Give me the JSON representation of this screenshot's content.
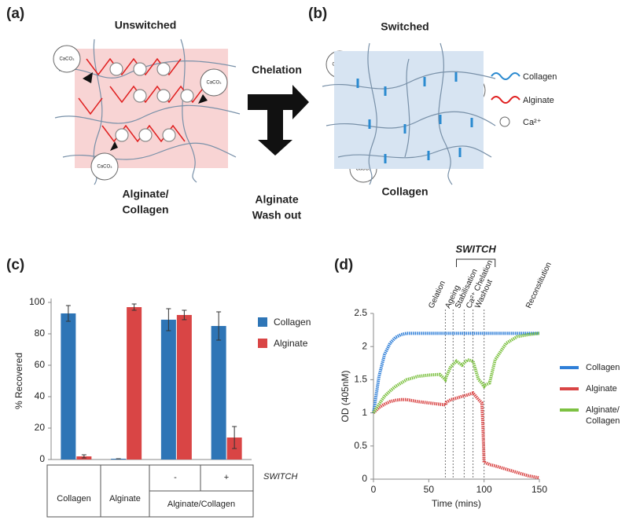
{
  "panel_labels": [
    "(a)",
    "(b)",
    "(c)",
    "(d)"
  ],
  "diagram": {
    "unswitched": "Unswitched",
    "switched": "Switched",
    "unswitched_label": [
      "Alginate/",
      "Collagen"
    ],
    "switched_label": "Collagen",
    "chelation": "Chelation",
    "wash_out": [
      "Alginate",
      "Wash out"
    ],
    "caco3": "CaCO₃",
    "legend": [
      "Collagen",
      "Alginate",
      "Ca²⁺"
    ]
  },
  "chart_data": [
    {
      "type": "bar",
      "y_label": "% Recovered",
      "categories": [
        "Collagen",
        "Alginate",
        "-",
        "+"
      ],
      "group_label": "Alginate/Collagen",
      "switch_label": "SWITCH",
      "series": [
        {
          "name": "Collagen",
          "color": "#2e75b6",
          "values": [
            93,
            0.5,
            89,
            85
          ],
          "errors": [
            5,
            0,
            7,
            9
          ]
        },
        {
          "name": "Alginate",
          "color": "#d94545",
          "values": [
            2,
            97,
            92,
            14
          ],
          "errors": [
            1,
            2,
            3,
            7
          ]
        }
      ],
      "ylim": [
        0,
        100
      ],
      "yticks": [
        0,
        20,
        40,
        60,
        80,
        100
      ],
      "legend": "right"
    },
    {
      "type": "line",
      "x_label": "Time (mins)",
      "y_label": "OD (405nM)",
      "x": [
        0,
        5,
        10,
        15,
        20,
        25,
        30,
        40,
        50,
        60,
        65,
        66,
        70,
        75,
        80,
        85,
        90,
        95,
        98,
        99,
        100,
        101,
        105,
        110,
        120,
        130,
        140,
        150
      ],
      "series": [
        {
          "name": "Collagen",
          "color": "#2f7fd8",
          "values": [
            1,
            1.55,
            1.88,
            2.05,
            2.14,
            2.18,
            2.2,
            2.2,
            2.2,
            2.2,
            2.2,
            2.2,
            2.2,
            2.2,
            2.2,
            2.2,
            2.2,
            2.2,
            2.2,
            2.2,
            2.2,
            2.2,
            2.2,
            2.2,
            2.2,
            2.2,
            2.2,
            2.2
          ]
        },
        {
          "name": "Alginate",
          "color": "#d94545",
          "values": [
            1,
            1.08,
            1.13,
            1.17,
            1.19,
            1.2,
            1.2,
            1.17,
            1.15,
            1.13,
            1.12,
            1.16,
            1.2,
            1.22,
            1.25,
            1.27,
            1.3,
            1.2,
            1.15,
            0.8,
            0.25,
            0.25,
            0.22,
            0.2,
            0.15,
            0.1,
            0.05,
            0.02
          ]
        },
        {
          "name": "Alginate/ Collagen",
          "color": "#7dc142",
          "values": [
            1,
            1.13,
            1.25,
            1.33,
            1.4,
            1.45,
            1.5,
            1.55,
            1.57,
            1.58,
            1.5,
            1.55,
            1.7,
            1.78,
            1.72,
            1.8,
            1.78,
            1.5,
            1.45,
            1.42,
            1.4,
            1.42,
            1.45,
            1.8,
            2.05,
            2.15,
            2.18,
            2.2
          ]
        }
      ],
      "xlim": [
        0,
        150
      ],
      "xticks": [
        0,
        50,
        100,
        150
      ],
      "ylim": [
        0,
        2.5
      ],
      "yticks": [
        0,
        0.5,
        1,
        1.5,
        2,
        2.5
      ],
      "phase_lines": [
        65,
        72,
        82,
        90,
        100
      ],
      "annotations": [
        {
          "text": "Gelation",
          "x": 52
        },
        {
          "text": "Ageing",
          "x": 67
        },
        {
          "text": "Stabilisation",
          "x": 76
        },
        {
          "text": "Ca²⁺ Chelation",
          "x": 86
        },
        {
          "text": "Washout",
          "x": 94
        },
        {
          "text": "Reconstitution",
          "x": 140
        }
      ],
      "switch": {
        "label": "SWITCH",
        "range": [
          75,
          110
        ]
      },
      "legend": "right"
    }
  ]
}
